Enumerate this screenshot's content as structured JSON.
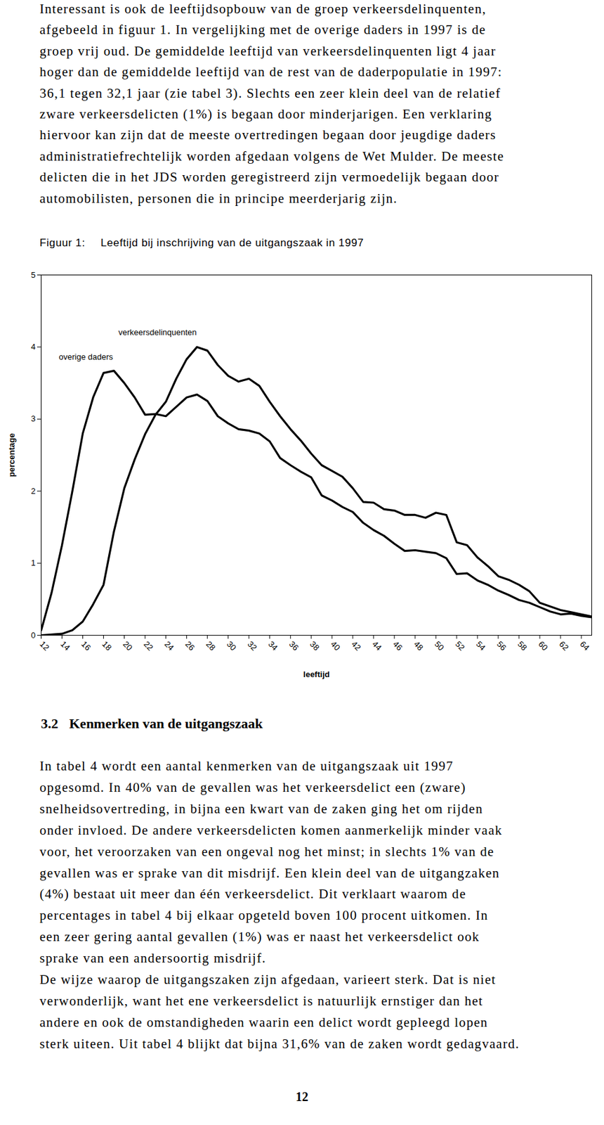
{
  "paragraph_1": {
    "lines": [
      "Interessant is ook de leeftijdsopbouw van de groep verkeersdelinquenten,",
      "afgebeeld in figuur 1. In vergelijking met de overige daders in 1997 is de",
      "groep vrij oud. De gemiddelde leeftijd van verkeersdelinquenten ligt 4 jaar",
      "hoger dan de gemiddelde leeftijd van de rest van de daderpopulatie in 1997:",
      "36,1 tegen 32,1 jaar (zie tabel 3). Slechts een zeer klein deel van de relatief",
      "zware verkeersdelicten (1%) is begaan door minderjarigen. Een verklaring",
      "hiervoor kan zijn dat de meeste overtredingen begaan door jeugdige daders",
      "administratiefrechtelijk worden afgedaan volgens de Wet Mulder. De meeste",
      "delicten die in het JDS worden geregistreerd zijn vermoedelijk begaan door",
      "automobilisten, personen die in principe meerderjarig zijn."
    ]
  },
  "figure_label": "Figuur 1:",
  "chart_data": {
    "type": "line",
    "title": "Leeftijd bij inschrijving van de uitgangszaak in 1997",
    "x_label": "leeftijd",
    "y_label": "percentage",
    "x": [
      12,
      13,
      14,
      15,
      16,
      17,
      18,
      19,
      20,
      21,
      22,
      23,
      24,
      25,
      26,
      27,
      28,
      29,
      30,
      31,
      32,
      33,
      34,
      35,
      36,
      37,
      38,
      39,
      40,
      41,
      42,
      43,
      44,
      45,
      46,
      47,
      48,
      49,
      50,
      51,
      52,
      53,
      54,
      55,
      56,
      57,
      58,
      59,
      60,
      61,
      62,
      63,
      64,
      65
    ],
    "series": [
      {
        "name": "verkeersdelinquenten",
        "color": "#000000",
        "line_style": "solid",
        "label_position": [
          23.2,
          4.2
        ],
        "values": [
          0.0,
          0.01,
          0.02,
          0.07,
          0.19,
          0.43,
          0.7,
          1.44,
          2.04,
          2.44,
          2.79,
          3.06,
          3.24,
          3.56,
          3.83,
          4.0,
          3.95,
          3.75,
          3.6,
          3.52,
          3.56,
          3.46,
          3.24,
          3.04,
          2.86,
          2.7,
          2.52,
          2.36,
          2.28,
          2.2,
          2.04,
          1.85,
          1.84,
          1.75,
          1.73,
          1.67,
          1.67,
          1.63,
          1.7,
          1.67,
          1.29,
          1.25,
          1.08,
          0.96,
          0.82,
          0.77,
          0.7,
          0.61,
          0.45,
          0.4,
          0.35,
          0.32,
          0.29,
          0.26
        ]
      },
      {
        "name": "overige daders",
        "color": "#000000",
        "line_style": "solid",
        "label_position": [
          16.3,
          3.86
        ],
        "values": [
          0.07,
          0.59,
          1.25,
          2.0,
          2.8,
          3.3,
          3.64,
          3.67,
          3.5,
          3.3,
          3.06,
          3.07,
          3.04,
          3.17,
          3.3,
          3.34,
          3.25,
          3.04,
          2.94,
          2.86,
          2.84,
          2.8,
          2.69,
          2.46,
          2.36,
          2.27,
          2.19,
          1.94,
          1.87,
          1.78,
          1.71,
          1.56,
          1.46,
          1.38,
          1.27,
          1.17,
          1.18,
          1.16,
          1.14,
          1.07,
          0.85,
          0.86,
          0.76,
          0.7,
          0.62,
          0.56,
          0.49,
          0.45,
          0.39,
          0.33,
          0.29,
          0.3,
          0.27,
          0.25
        ]
      }
    ],
    "xlim": [
      12,
      65
    ],
    "ylim": [
      0,
      5
    ],
    "xticks": [
      12,
      14,
      16,
      18,
      20,
      22,
      24,
      26,
      28,
      30,
      32,
      34,
      36,
      38,
      40,
      42,
      44,
      46,
      48,
      50,
      52,
      54,
      56,
      58,
      60,
      62,
      64
    ],
    "yticks": [
      0,
      1,
      2,
      3,
      4,
      5
    ],
    "grid": false
  },
  "section": {
    "number": "3.2",
    "title": "Kenmerken van de uitgangszaak"
  },
  "paragraph_2": {
    "lines": [
      "In tabel 4 wordt een aantal kenmerken van de uitgangszaak uit 1997",
      "opgesomd. In 40% van de gevallen was het verkeersdelict een (zware)",
      "snelheidsovertreding, in bijna een kwart van de zaken ging het om rijden",
      "onder invloed. De andere verkeersdelicten komen aanmerkelijk minder vaak",
      "voor, het veroorzaken van een ongeval nog het minst; in slechts 1% van de",
      "gevallen was er sprake van dit misdrijf. Een klein deel van de uitgangzaken",
      "(4%) bestaat uit meer dan één verkeersdelict. Dit verklaart waarom de",
      "percentages in tabel 4 bij elkaar opgeteld boven 100 procent uitkomen. In",
      "een zeer gering aantal gevallen (1%) was er naast het verkeersdelict ook",
      "sprake van een andersoortig misdrijf."
    ]
  },
  "paragraph_3": {
    "lines": [
      "De wijze waarop de uitgangszaken zijn afgedaan, varieert sterk. Dat is niet",
      "verwonderlijk, want het ene verkeersdelict is natuurlijk ernstiger dan het",
      "andere en ook de omstandigheden waarin een delict wordt gepleegd lopen",
      "sterk uiteen. Uit tabel 4 blijkt dat bijna 31,6% van de zaken wordt gedagvaard."
    ]
  },
  "page_number": "12"
}
